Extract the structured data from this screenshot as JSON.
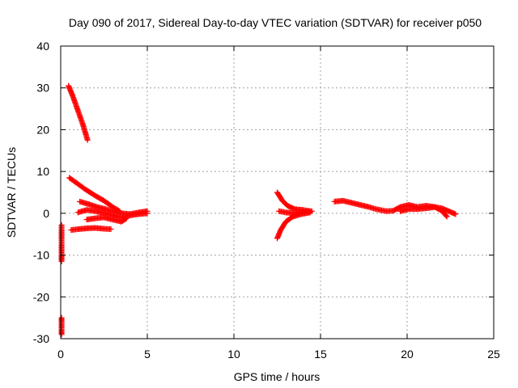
{
  "chart_data": {
    "type": "scatter",
    "title": "Day 090 of 2017, Sidereal Day-to-day VTEC variation (SDTVAR) for receiver p050",
    "xlabel": "GPS time / hours",
    "ylabel": "SDTVAR / TECUs",
    "xlim": [
      0,
      25
    ],
    "ylim": [
      -30,
      40
    ],
    "xticks": [
      0,
      5,
      10,
      15,
      20,
      25
    ],
    "yticks": [
      -30,
      -20,
      -10,
      0,
      10,
      20,
      30,
      40
    ],
    "grid": true,
    "marker": "plus",
    "marker_color": "#ff0000",
    "segments": [
      {
        "points": [
          [
            0.45,
            30.5
          ],
          [
            0.7,
            28.0
          ],
          [
            1.0,
            24.5
          ],
          [
            1.3,
            21.0
          ],
          [
            1.55,
            17.5
          ]
        ]
      },
      {
        "points": [
          [
            0.5,
            8.5
          ],
          [
            1.0,
            7.0
          ],
          [
            1.5,
            5.5
          ],
          [
            2.0,
            4.2
          ],
          [
            2.5,
            3.0
          ],
          [
            3.0,
            1.5
          ],
          [
            3.4,
            0.5
          ]
        ]
      },
      {
        "points": [
          [
            1.1,
            2.8
          ],
          [
            1.6,
            2.2
          ],
          [
            2.1,
            1.5
          ],
          [
            2.6,
            1.0
          ],
          [
            3.0,
            0.5
          ],
          [
            3.5,
            0.0
          ],
          [
            4.0,
            -0.2
          ],
          [
            4.5,
            0.2
          ],
          [
            5.0,
            0.5
          ]
        ]
      },
      {
        "points": [
          [
            1.0,
            0.2
          ],
          [
            1.5,
            0.8
          ],
          [
            2.0,
            0.5
          ],
          [
            2.5,
            0.0
          ],
          [
            3.0,
            -0.5
          ],
          [
            3.5,
            -1.0
          ],
          [
            4.0,
            -0.5
          ],
          [
            4.5,
            -0.2
          ],
          [
            5.0,
            0.0
          ]
        ]
      },
      {
        "points": [
          [
            1.5,
            -1.5
          ],
          [
            2.0,
            -1.2
          ],
          [
            2.5,
            -1.0
          ],
          [
            3.0,
            -1.5
          ],
          [
            3.5,
            -2.0
          ],
          [
            3.8,
            -1.2
          ]
        ]
      },
      {
        "points": [
          [
            0.6,
            -4.0
          ],
          [
            1.0,
            -3.8
          ],
          [
            1.5,
            -3.6
          ],
          [
            2.0,
            -3.5
          ],
          [
            2.5,
            -3.7
          ],
          [
            2.9,
            -3.8
          ]
        ]
      },
      {
        "points": [
          [
            0.05,
            -2.8
          ],
          [
            0.05,
            -10.0
          ],
          [
            0.05,
            -11.5
          ]
        ]
      },
      {
        "points": [
          [
            0.05,
            -25.0
          ],
          [
            0.05,
            -26.0
          ],
          [
            0.05,
            -28.0
          ],
          [
            0.05,
            -29.0
          ]
        ]
      },
      {
        "points": [
          [
            12.5,
            5.0
          ],
          [
            12.8,
            3.0
          ],
          [
            13.1,
            1.8
          ],
          [
            13.5,
            1.0
          ],
          [
            14.0,
            0.8
          ],
          [
            14.4,
            0.5
          ]
        ]
      },
      {
        "points": [
          [
            12.6,
            0.5
          ],
          [
            13.0,
            0.2
          ],
          [
            13.5,
            0.0
          ],
          [
            14.0,
            0.3
          ],
          [
            14.5,
            0.5
          ]
        ]
      },
      {
        "points": [
          [
            12.5,
            -6.0
          ],
          [
            12.7,
            -4.0
          ],
          [
            13.0,
            -2.0
          ],
          [
            13.4,
            -0.8
          ],
          [
            13.9,
            -0.2
          ],
          [
            14.4,
            0.2
          ]
        ]
      },
      {
        "points": [
          [
            15.8,
            2.8
          ],
          [
            16.3,
            3.0
          ],
          [
            16.8,
            2.5
          ],
          [
            17.3,
            2.0
          ],
          [
            17.8,
            1.5
          ],
          [
            18.2,
            1.0
          ],
          [
            18.8,
            0.5
          ],
          [
            19.2,
            0.6
          ],
          [
            19.6,
            1.5
          ],
          [
            20.1,
            2.0
          ],
          [
            20.6,
            1.5
          ],
          [
            21.1,
            1.8
          ],
          [
            21.6,
            1.5
          ],
          [
            22.0,
            1.2
          ],
          [
            22.4,
            0.5
          ],
          [
            22.8,
            -0.2
          ]
        ]
      },
      {
        "points": [
          [
            19.6,
            0.5
          ],
          [
            20.1,
            1.0
          ],
          [
            20.6,
            1.0
          ],
          [
            21.1,
            1.2
          ],
          [
            21.6,
            1.5
          ],
          [
            22.0,
            0.6
          ],
          [
            22.3,
            -0.8
          ]
        ]
      }
    ]
  }
}
